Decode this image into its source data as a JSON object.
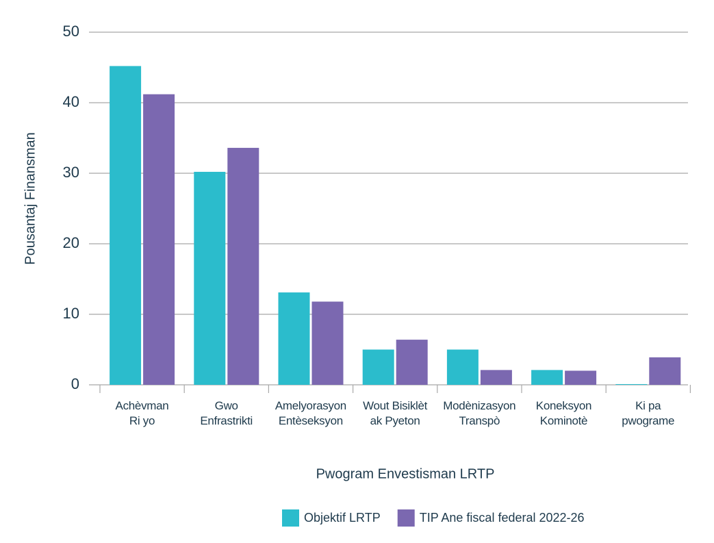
{
  "chart_data": {
    "type": "bar",
    "y_label": "Pousantaj Finansman",
    "x_label": "Pwogram Envestisman LRTP",
    "categories": [
      "Achèvman\nRi yo",
      "Gwo\nEnfrastrikti",
      "Amelyorasyon\nEntèseksyon",
      "Wout Bisiklèt\nak Pyeton",
      "Modènizasyon\nTranspò",
      "Koneksyon\nKominotè",
      "Ki pa\npwograme"
    ],
    "series": [
      {
        "name": "Objektif LRTP",
        "color": "#2bbccc",
        "values": [
          45.2,
          30.2,
          13.1,
          5.0,
          5.0,
          2.1,
          0.1
        ]
      },
      {
        "name": "TIP Ane fiscal federal 2022-26",
        "color": "#7b68b0",
        "values": [
          41.2,
          33.6,
          11.8,
          6.4,
          2.1,
          2.0,
          3.9
        ]
      }
    ],
    "ylim": [
      0,
      50
    ],
    "yticks": [
      0,
      10,
      20,
      30,
      40,
      50
    ],
    "grid": true
  }
}
